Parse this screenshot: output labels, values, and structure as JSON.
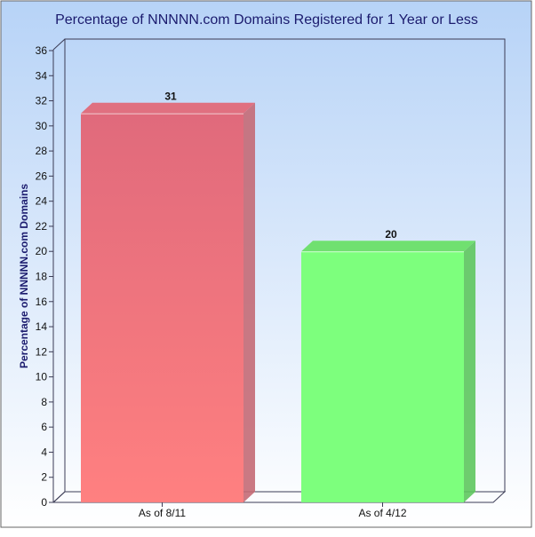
{
  "chart_data": {
    "type": "bar",
    "title": "Percentage of NNNNN.com Domains Registered for 1 Year or Less",
    "xlabel": "",
    "ylabel": "Percentage of NNNNN.com Domains",
    "categories": [
      "As of 8/11",
      "As of 4/12"
    ],
    "values": [
      31,
      20
    ],
    "data_labels": [
      "31",
      "20"
    ],
    "ylim": [
      0,
      36
    ],
    "yticks": [
      0,
      2,
      4,
      6,
      8,
      10,
      12,
      14,
      16,
      18,
      20,
      22,
      24,
      26,
      28,
      30,
      32,
      34,
      36
    ],
    "grid": false,
    "legend": "none",
    "style": "3d",
    "colors": {
      "bars": [
        "#ff7b7b",
        "#7dff7d"
      ],
      "bars_top": [
        "#e07080",
        "#70e070"
      ],
      "bars_side": [
        "#c46a75",
        "#5ec65e"
      ],
      "background_top": "#b7d3f7",
      "background_bottom": "#ffffff",
      "title_text": "#1b1b6e",
      "frame": "#3b3b55"
    }
  }
}
